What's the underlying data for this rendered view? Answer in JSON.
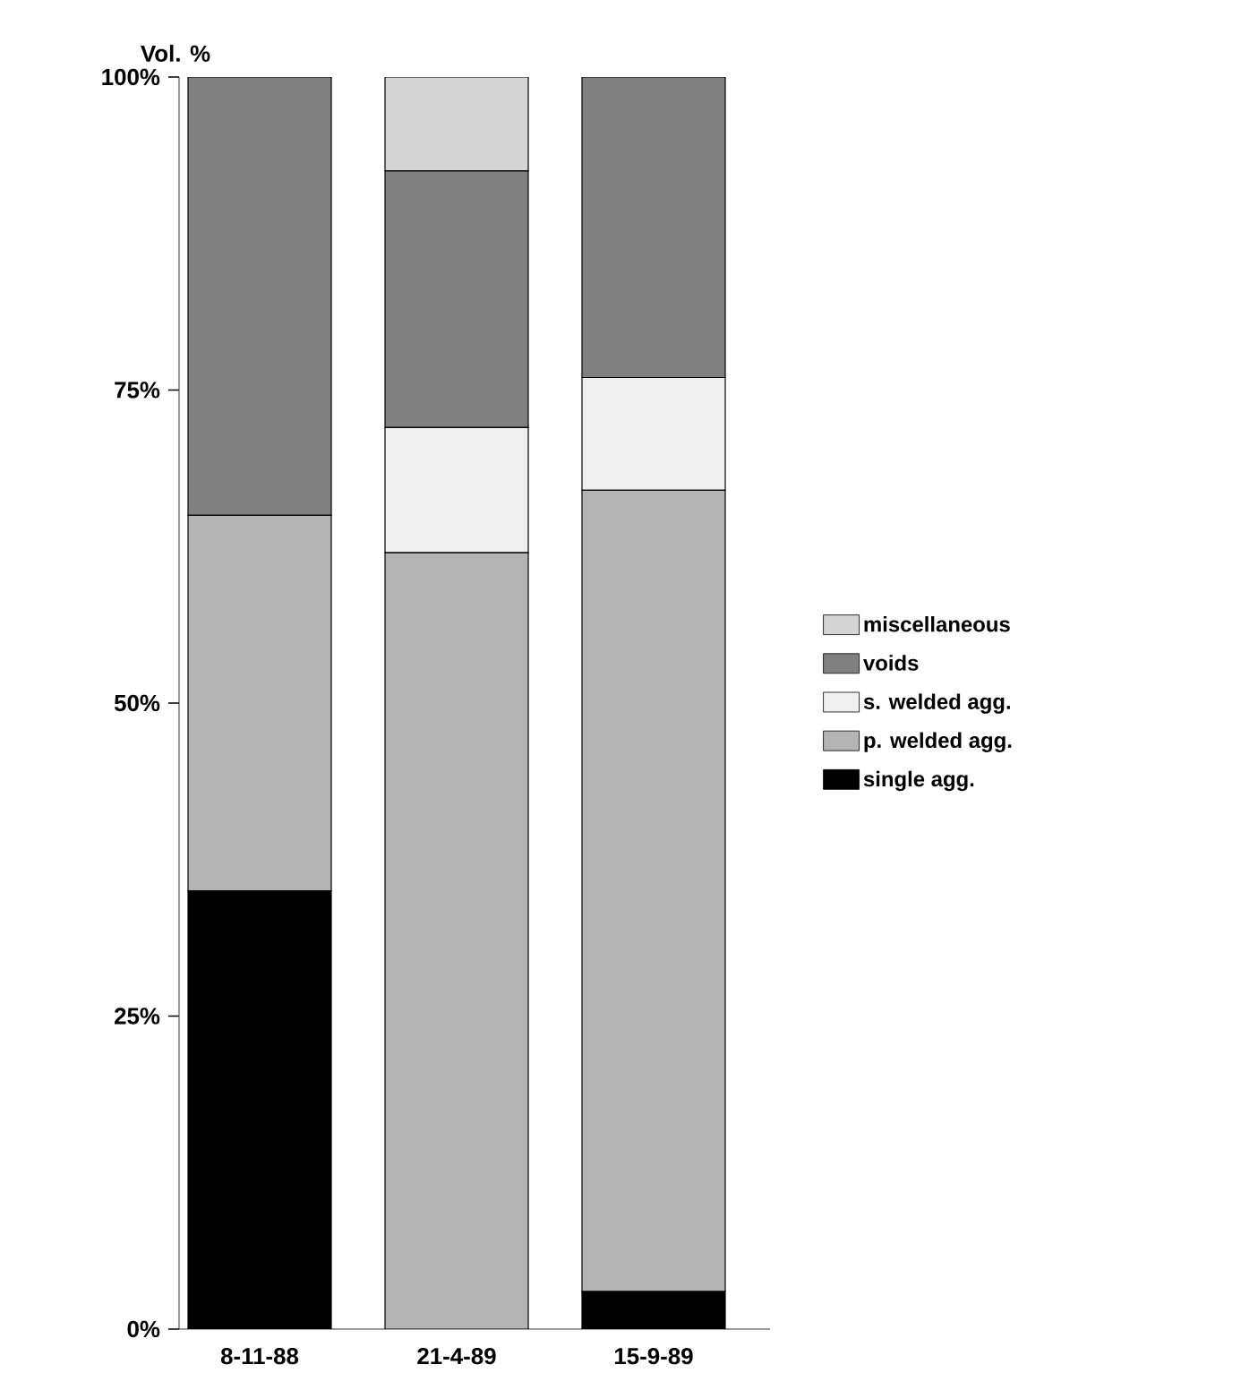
{
  "chart_data": {
    "type": "bar",
    "stacked": true,
    "ylabel": "Vol. %",
    "categories": [
      "8-11-88",
      "21-4-89",
      "15-9-89"
    ],
    "series": [
      {
        "name": "single agg.",
        "color": "#000000",
        "values": [
          35,
          null,
          3
        ]
      },
      {
        "name": "p. welded agg.",
        "color": "#b4b4b4",
        "values": [
          30,
          62,
          64
        ]
      },
      {
        "name": "s. welded agg.",
        "color": "#f0f0f0",
        "values": [
          null,
          10,
          9
        ]
      },
      {
        "name": "voids",
        "color": "#808080",
        "values": [
          35,
          20.5,
          24
        ]
      },
      {
        "name": "miscellaneous",
        "color": "#d4d4d4",
        "values": [
          null,
          7.5,
          null
        ]
      }
    ],
    "ylim": [
      0,
      100
    ],
    "yticks": [
      {
        "value": 0,
        "label": "0%"
      },
      {
        "value": 25,
        "label": "25%"
      },
      {
        "value": 50,
        "label": "50%"
      },
      {
        "value": 75,
        "label": "75%"
      },
      {
        "value": 100,
        "label": "100%"
      }
    ],
    "grid": false,
    "legend": "right"
  }
}
